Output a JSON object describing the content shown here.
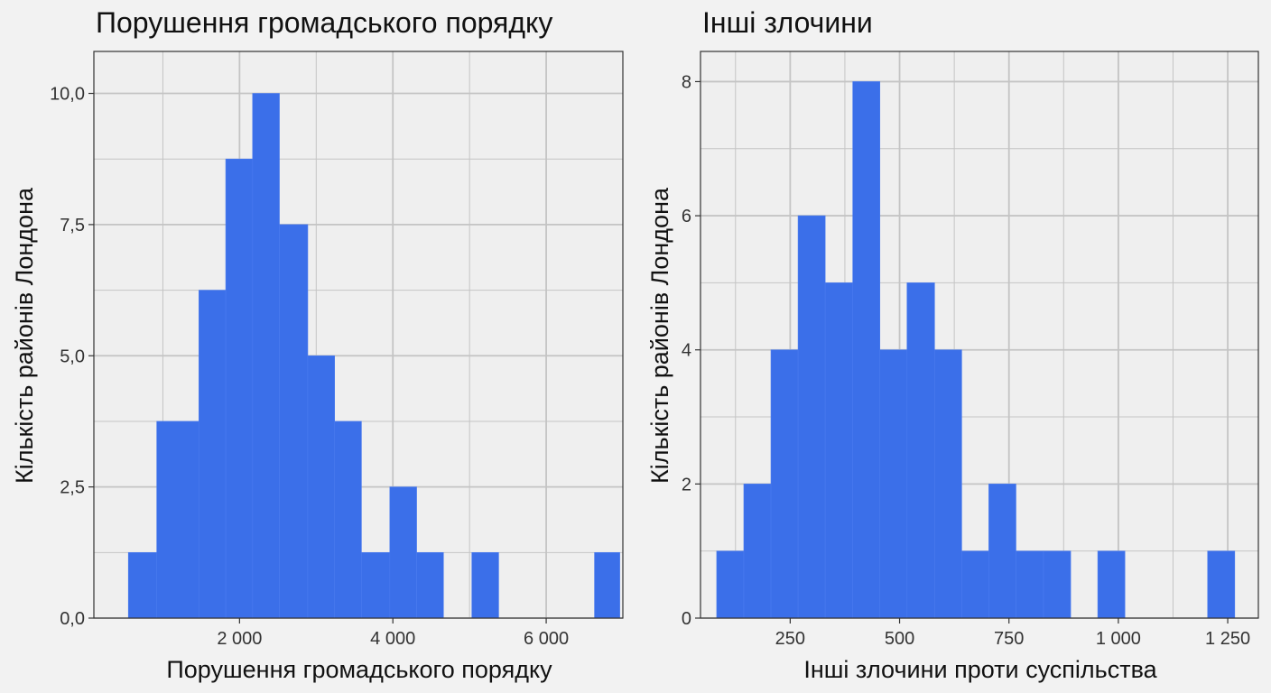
{
  "colors": {
    "background": "#f2f2f2",
    "panel": "#efefef",
    "grid": "#c4c4c4",
    "bar": "#3b6fe9",
    "axis": "#333333",
    "tick_text": "#333333",
    "title_text": "#111111"
  },
  "chart_data": [
    {
      "type": "bar",
      "title": "Порушення громадського порядку",
      "xlabel": "Порушення громадського порядку",
      "ylabel": "Кількість районів Лондона",
      "xlim": [
        100,
        7000
      ],
      "ylim": [
        0,
        10.8
      ],
      "x_ticks": [
        2000,
        4000,
        6000
      ],
      "x_tick_labels": [
        "2 000",
        "4 000",
        "6 000"
      ],
      "y_ticks": [
        0,
        2.5,
        5,
        7.5,
        10
      ],
      "y_tick_labels": [
        "0,0",
        "2,5",
        "5,0",
        "7,5",
        "10,0"
      ],
      "grid": true,
      "bins": [
        {
          "x0": 550,
          "x1": 920,
          "count": 1.25
        },
        {
          "x0": 920,
          "x1": 1470,
          "count": 3.75
        },
        {
          "x0": 1470,
          "x1": 1820,
          "count": 6.25
        },
        {
          "x0": 1820,
          "x1": 2170,
          "count": 8.75
        },
        {
          "x0": 2170,
          "x1": 2520,
          "count": 10.0
        },
        {
          "x0": 2520,
          "x1": 2890,
          "count": 7.5
        },
        {
          "x0": 2890,
          "x1": 3240,
          "count": 5.0
        },
        {
          "x0": 3240,
          "x1": 3590,
          "count": 3.75
        },
        {
          "x0": 3590,
          "x1": 3960,
          "count": 1.25
        },
        {
          "x0": 3960,
          "x1": 4310,
          "count": 2.5
        },
        {
          "x0": 4310,
          "x1": 4660,
          "count": 1.25
        },
        {
          "x0": 5030,
          "x1": 5380,
          "count": 1.25
        },
        {
          "x0": 6630,
          "x1": 6960,
          "count": 1.25
        }
      ]
    },
    {
      "type": "bar",
      "title": "Інші злочини",
      "xlabel": "Інші злочини проти суспільства",
      "ylabel": "Кількість районів Лондона",
      "xlim": [
        45,
        1320
      ],
      "ylim": [
        0,
        8.45
      ],
      "x_ticks": [
        250,
        500,
        750,
        1000,
        1250
      ],
      "x_tick_labels": [
        "250",
        "500",
        "750",
        "1 000",
        "1 250"
      ],
      "y_ticks": [
        0,
        2,
        4,
        6,
        8
      ],
      "y_tick_labels": [
        "0",
        "2",
        "4",
        "6",
        "8"
      ],
      "grid": true,
      "bins": [
        {
          "x0": 82,
          "x1": 144,
          "count": 1
        },
        {
          "x0": 144,
          "x1": 206,
          "count": 2
        },
        {
          "x0": 206,
          "x1": 268,
          "count": 4
        },
        {
          "x0": 268,
          "x1": 330,
          "count": 6
        },
        {
          "x0": 330,
          "x1": 393,
          "count": 5
        },
        {
          "x0": 393,
          "x1": 455,
          "count": 8
        },
        {
          "x0": 455,
          "x1": 517,
          "count": 4
        },
        {
          "x0": 517,
          "x1": 580,
          "count": 5
        },
        {
          "x0": 580,
          "x1": 642,
          "count": 4
        },
        {
          "x0": 642,
          "x1": 704,
          "count": 1
        },
        {
          "x0": 704,
          "x1": 766,
          "count": 2
        },
        {
          "x0": 766,
          "x1": 829,
          "count": 1
        },
        {
          "x0": 829,
          "x1": 891,
          "count": 1
        },
        {
          "x0": 953,
          "x1": 1015,
          "count": 1
        },
        {
          "x0": 1204,
          "x1": 1266,
          "count": 1
        }
      ]
    }
  ]
}
